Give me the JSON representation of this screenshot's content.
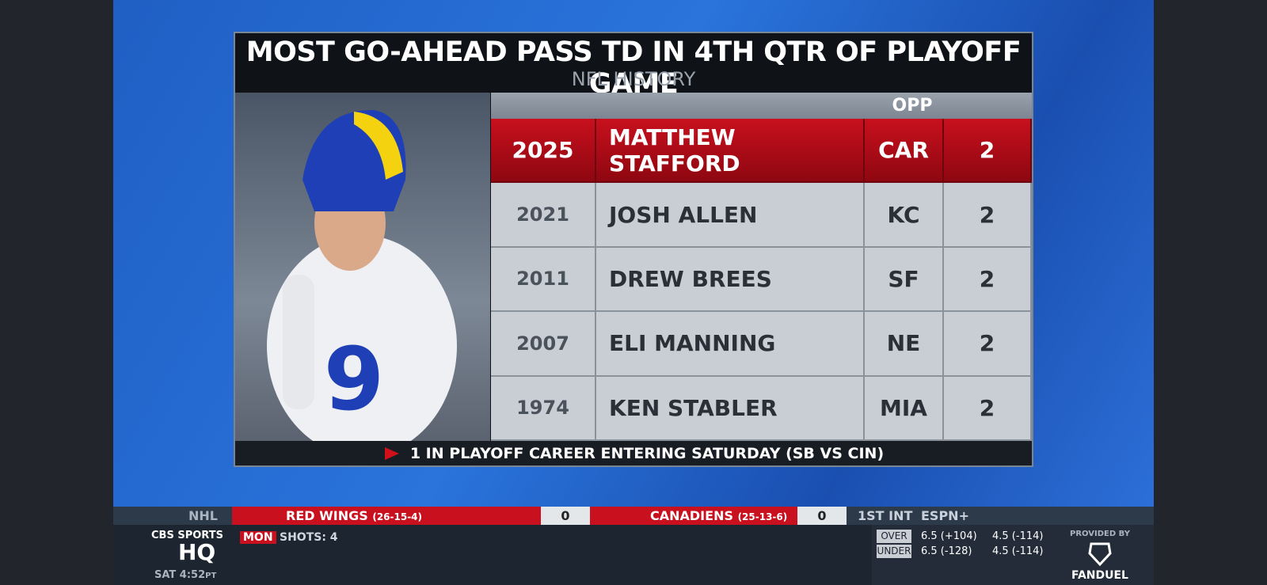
{
  "header": {
    "title": "MOST GO-AHEAD PASS TD IN 4TH QTR OF PLAYOFF GAME",
    "subtitle": "NFL HISTORY"
  },
  "table": {
    "columns": [
      "OPP"
    ],
    "rows": [
      [
        2025,
        "MATTHEW STAFFORD",
        "CAR",
        2
      ],
      [
        2021,
        "JOSH ALLEN",
        "KC",
        2
      ],
      [
        2011,
        "DREW BREES",
        "SF",
        2
      ],
      [
        2007,
        "ELI MANNING",
        "NE",
        2
      ],
      [
        1974,
        "KEN STABLER",
        "MIA",
        2
      ]
    ]
  },
  "footnote": "1 IN PLAYOFF CAREER ENTERING SATURDAY (SB VS CIN)",
  "ticker": {
    "league": "NHL",
    "away": {
      "team": "RED WINGS",
      "record": "(26-15-4)",
      "score": 0
    },
    "home": {
      "team": "CANADIENS",
      "record": "(25-13-6)",
      "score": 0
    },
    "period": "1ST INT",
    "network": "ESPN+",
    "day": "MON",
    "info": "SHOTS: 4"
  },
  "bug": {
    "brand": "CBS SPORTS",
    "logo": "HQ",
    "time": "SAT 4:52",
    "zone": "PT"
  },
  "odds": {
    "provided_by": "PROVIDED BY",
    "rows": [
      [
        "OVER",
        "6.5 (+104)",
        "4.5 (-114)"
      ],
      [
        "UNDER",
        "6.5 (-128)",
        "4.5 (-114)"
      ]
    ],
    "sponsor": "FANDUEL"
  }
}
